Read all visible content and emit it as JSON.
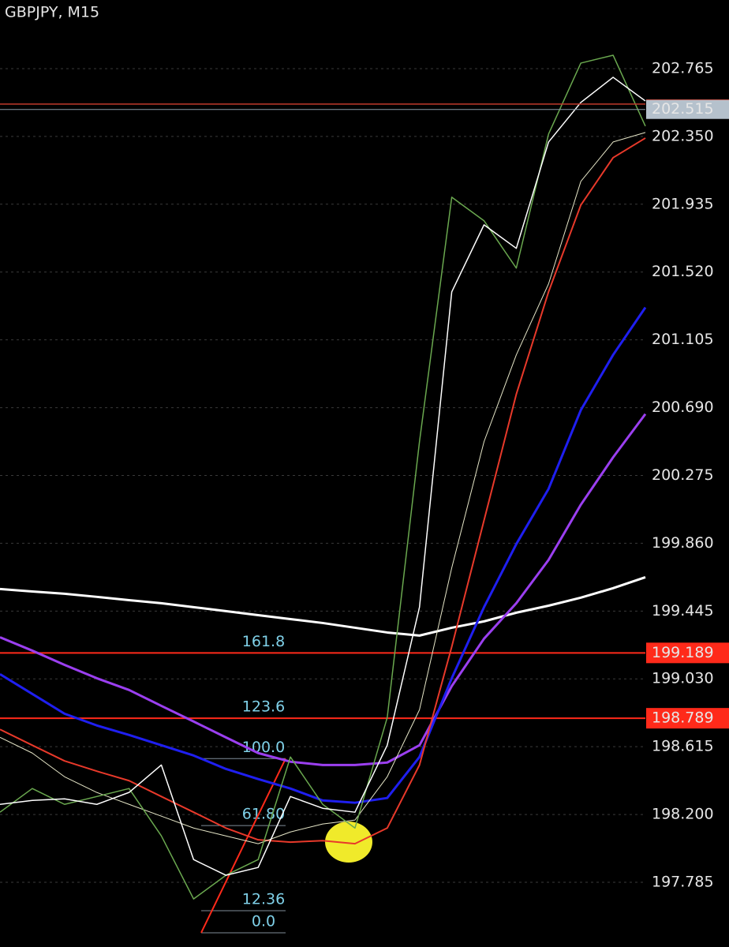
{
  "chart_data": {
    "type": "line",
    "title": "GBPJPY, M15",
    "categories": [
      null,
      null,
      null,
      null,
      null,
      null,
      null,
      null,
      null,
      null,
      null,
      null,
      null,
      null,
      null,
      null,
      null,
      null,
      null,
      null,
      null
    ],
    "ylim": [
      197.389,
      203.185
    ],
    "yticks": [
      202.765,
      {
        "value": 202.35,
        "label": "202.350"
      },
      201.935,
      {
        "value": 201.52,
        "label": "201.520"
      },
      201.105,
      {
        "value": 200.69,
        "label": "200.690"
      },
      200.275,
      {
        "value": 199.86,
        "label": "199.860"
      },
      199.445,
      {
        "value": 199.03,
        "label": "199.030"
      },
      198.615,
      {
        "value": 198.2,
        "label": "198.200"
      },
      197.785
    ],
    "grid": true,
    "series": [
      {
        "color": "#ffffff",
        "width": 3,
        "values": [
          199.58,
          199.565,
          199.551,
          199.532,
          199.512,
          199.493,
          199.469,
          199.445,
          199.42,
          199.396,
          199.372,
          199.343,
          199.314,
          199.295,
          199.343,
          199.382,
          199.435,
          199.478,
          199.527,
          199.585,
          199.652
        ]
      },
      {
        "color": "#9b3ff0",
        "width": 3,
        "values": [
          199.285,
          199.203,
          199.116,
          199.034,
          198.962,
          198.865,
          198.769,
          198.672,
          198.576,
          198.523,
          198.503,
          198.503,
          198.518,
          198.624,
          198.986,
          199.276,
          199.493,
          199.758,
          200.096,
          200.386,
          200.651
        ]
      },
      {
        "color": "#1f1ff0",
        "width": 3,
        "values": [
          199.059,
          198.938,
          198.817,
          198.745,
          198.687,
          198.624,
          198.561,
          198.479,
          198.417,
          198.359,
          198.286,
          198.272,
          198.301,
          198.552,
          199.034,
          199.469,
          199.855,
          200.193,
          200.675,
          201.013,
          201.303
        ]
      },
      {
        "color": "#e8392a",
        "width": 2,
        "values": [
          198.721,
          198.624,
          198.528,
          198.465,
          198.407,
          198.31,
          198.214,
          198.117,
          198.045,
          198.031,
          198.04,
          198.021,
          198.117,
          198.503,
          199.227,
          200.0,
          200.772,
          201.399,
          201.93,
          202.22,
          202.34
        ]
      },
      {
        "color": "#e6e6c8",
        "width": 1,
        "values": [
          198.672,
          198.576,
          198.431,
          198.335,
          198.262,
          198.19,
          198.117,
          198.069,
          198.021,
          198.093,
          198.142,
          198.166,
          198.431,
          198.841,
          199.71,
          200.482,
          201.013,
          201.448,
          202.075,
          202.316,
          202.374
        ]
      },
      {
        "color": "#6aa84f",
        "width": 1.5,
        "values": [
          198.214,
          198.359,
          198.262,
          198.31,
          198.359,
          198.069,
          197.683,
          197.828,
          197.924,
          198.552,
          198.262,
          198.117,
          198.793,
          200.482,
          201.978,
          201.834,
          201.544,
          202.365,
          202.799,
          202.847,
          202.413
        ]
      },
      {
        "color": "#ffffff",
        "width": 1.5,
        "values": [
          198.262,
          198.286,
          198.296,
          198.262,
          198.335,
          198.503,
          197.924,
          197.828,
          197.876,
          198.31,
          198.238,
          198.214,
          198.624,
          199.469,
          201.399,
          201.809,
          201.665,
          202.316,
          202.558,
          202.712,
          202.567
        ]
      }
    ],
    "ask_line": {
      "value": 202.548,
      "color": "#c0392b"
    },
    "bid_line": {
      "value": 202.515,
      "color": "#8a9aa8"
    },
    "fib_levels": [
      {
        "label": "161.8",
        "price": 199.189,
        "color": "#ff2a1a"
      },
      {
        "label": "123.6",
        "price": 198.789,
        "color": "#ff2a1a"
      },
      {
        "label": "100.0",
        "price": 198.542
      },
      {
        "label": "61.80",
        "price": 198.132
      },
      {
        "label": "12.36",
        "price": 197.611
      },
      {
        "label": "0.0",
        "price": 197.476
      }
    ]
  }
}
